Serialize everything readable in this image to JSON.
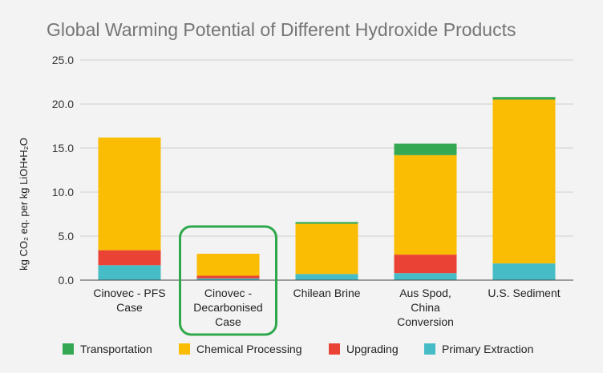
{
  "chart_data": {
    "type": "bar",
    "stacked": true,
    "title": "Global Warming Potential of Different Hydroxide Products",
    "ylabel": "kg CO₂ eq. per kg LiOH•H₂O",
    "xlabel": "",
    "ylim": [
      0,
      25
    ],
    "yticks": [
      "0.0",
      "5.0",
      "10.0",
      "15.0",
      "20.0",
      "25.0"
    ],
    "grid": true,
    "legend_position": "bottom",
    "categories": [
      [
        "Cinovec - PFS",
        "Case"
      ],
      [
        "Cinovec -",
        "Decarbonised",
        "Case"
      ],
      [
        "Chilean Brine"
      ],
      [
        "Aus Spod,",
        "China",
        "Conversion"
      ],
      [
        "U.S. Sediment"
      ]
    ],
    "highlighted_category_index": 1,
    "highlight_color": "#2ea84a",
    "series": [
      {
        "name": "Primary Extraction",
        "color": "#46bdc6",
        "values": [
          1.7,
          0.2,
          0.7,
          0.8,
          1.9
        ]
      },
      {
        "name": "Upgrading",
        "color": "#ea4335",
        "values": [
          1.7,
          0.3,
          0.0,
          2.1,
          0.0
        ]
      },
      {
        "name": "Chemical Processing",
        "color": "#fbbc04",
        "values": [
          12.8,
          2.5,
          5.7,
          11.3,
          18.6
        ]
      },
      {
        "name": "Transportation",
        "color": "#34a853",
        "values": [
          0.0,
          0.0,
          0.2,
          1.3,
          0.3
        ]
      }
    ],
    "legend_order": [
      "Transportation",
      "Chemical Processing",
      "Upgrading",
      "Primary Extraction"
    ]
  }
}
